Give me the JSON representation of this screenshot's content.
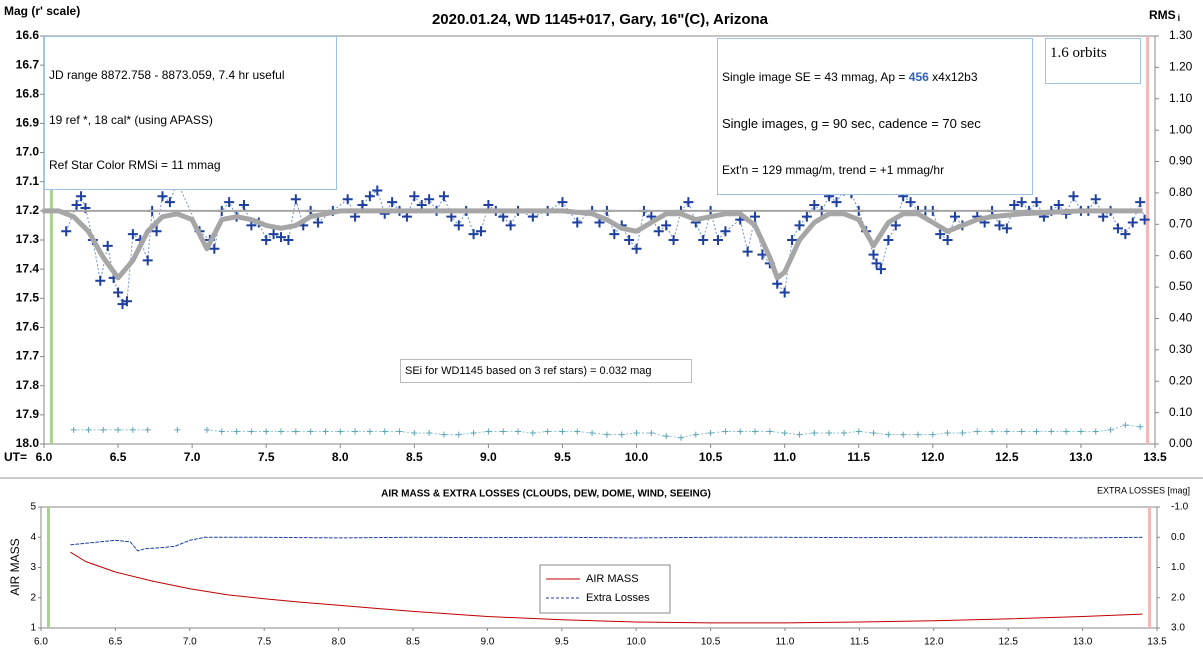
{
  "chart_data": [
    {
      "type": "scatter",
      "title": "2020.01.24, WD 1145+017, Gary, 16\"(C), Arizona",
      "ylabel": "Mag (r' scale)",
      "y2label": {
        "text": "RMS",
        "sub": "i"
      },
      "xlabel": "UT=",
      "xlim": [
        6.0,
        13.5
      ],
      "xticks": [
        {
          "value": 6,
          "label": "6.0"
        },
        6.5,
        {
          "value": 7,
          "label": "7.0"
        },
        7.5,
        {
          "value": 8,
          "label": "8.0"
        },
        8.5,
        {
          "value": 9,
          "label": "9.0"
        },
        9.5,
        {
          "value": 10,
          "label": "10.0"
        },
        10.5,
        {
          "value": 11,
          "label": "11.0"
        },
        11.5,
        {
          "value": 12,
          "label": "12.0"
        },
        12.5,
        {
          "value": 13,
          "label": "13.0"
        },
        13.5
      ],
      "ylim": [
        18.0,
        16.6
      ],
      "yticks": [
        16.6,
        16.7,
        16.8,
        16.9,
        {
          "value": 17,
          "label": "17.0"
        },
        17.1,
        17.2,
        17.3,
        17.4,
        17.5,
        17.6,
        17.7,
        17.8,
        17.9,
        {
          "value": 18,
          "label": "18.0"
        }
      ],
      "y2lim": [
        0,
        1.3
      ],
      "y2ticks": [
        {
          "value": 0,
          "label": "0.00"
        },
        {
          "value": 0.1,
          "label": "0.10"
        },
        {
          "value": 0.2,
          "label": "0.20"
        },
        {
          "value": 0.3,
          "label": "0.30"
        },
        {
          "value": 0.4,
          "label": "0.40"
        },
        {
          "value": 0.5,
          "label": "0.50"
        },
        {
          "value": 0.6,
          "label": "0.60"
        },
        {
          "value": 0.7,
          "label": "0.70"
        },
        {
          "value": 0.8,
          "label": "0.80"
        },
        {
          "value": 0.9,
          "label": "0.90"
        },
        {
          "value": 1.0,
          "label": "1.00"
        },
        {
          "value": 1.1,
          "label": "1.10"
        },
        {
          "value": 1.2,
          "label": "1.20"
        },
        {
          "value": 1.3,
          "label": "1.30"
        }
      ],
      "grid": false,
      "vlines": [
        {
          "x": 6.05,
          "color": "#a9d18e"
        },
        {
          "x": 13.45,
          "color": "#f4b6b6"
        }
      ],
      "series": [
        {
          "kind": "plus",
          "color": "#1f3f9f",
          "line_color": "#6f93cf",
          "x": [
            6.15,
            6.22,
            6.25,
            6.28,
            6.33,
            6.38,
            6.43,
            6.47,
            6.5,
            6.53,
            6.56,
            6.6,
            6.65,
            6.7,
            6.73,
            6.76,
            6.8,
            6.85,
            6.9,
            7.05,
            7.12,
            7.15,
            7.2,
            7.25,
            7.3,
            7.35,
            7.4,
            7.45,
            7.5,
            7.55,
            7.6,
            7.65,
            7.7,
            7.75,
            7.8,
            7.85,
            7.95,
            8.05,
            8.1,
            8.15,
            8.2,
            8.25,
            8.3,
            8.35,
            8.4,
            8.45,
            8.5,
            8.55,
            8.6,
            8.65,
            8.7,
            8.75,
            8.8,
            8.85,
            8.9,
            8.95,
            9.0,
            9.05,
            9.1,
            9.15,
            9.2,
            9.3,
            9.4,
            9.5,
            9.6,
            9.7,
            9.75,
            9.8,
            9.85,
            9.9,
            9.95,
            10.0,
            10.05,
            10.1,
            10.15,
            10.2,
            10.25,
            10.3,
            10.35,
            10.4,
            10.45,
            10.5,
            10.55,
            10.6,
            10.7,
            10.75,
            10.8,
            10.85,
            10.9,
            10.95,
            11.0,
            11.05,
            11.1,
            11.15,
            11.2,
            11.25,
            11.3,
            11.35,
            11.4,
            11.45,
            11.5,
            11.55,
            11.6,
            11.62,
            11.65,
            11.7,
            11.75,
            11.8,
            11.85,
            11.9,
            11.95,
            12.0,
            12.05,
            12.1,
            12.15,
            12.2,
            12.3,
            12.35,
            12.4,
            12.45,
            12.5,
            12.55,
            12.6,
            12.65,
            12.7,
            12.75,
            12.8,
            12.85,
            12.9,
            12.95,
            13.0,
            13.05,
            13.1,
            13.15,
            13.2,
            13.25,
            13.3,
            13.35,
            13.4,
            13.43
          ],
          "values": [
            17.27,
            17.18,
            17.15,
            17.19,
            17.3,
            17.44,
            17.32,
            17.43,
            17.48,
            17.52,
            17.51,
            17.28,
            17.3,
            17.37,
            17.2,
            17.27,
            17.15,
            17.17,
            17.1,
            17.27,
            17.3,
            17.33,
            17.2,
            17.17,
            17.22,
            17.18,
            17.25,
            17.24,
            17.3,
            17.28,
            17.29,
            17.3,
            17.16,
            17.25,
            17.2,
            17.24,
            17.2,
            17.16,
            17.22,
            17.18,
            17.15,
            17.13,
            17.21,
            17.17,
            17.2,
            17.22,
            17.15,
            17.18,
            17.16,
            17.2,
            17.15,
            17.22,
            17.25,
            17.2,
            17.28,
            17.27,
            17.18,
            17.2,
            17.22,
            17.25,
            17.2,
            17.22,
            17.2,
            17.17,
            17.24,
            17.2,
            17.24,
            17.2,
            17.28,
            17.25,
            17.3,
            17.33,
            17.2,
            17.22,
            17.27,
            17.25,
            17.3,
            17.2,
            17.17,
            17.24,
            17.3,
            17.2,
            17.3,
            17.27,
            17.23,
            17.34,
            17.22,
            17.35,
            17.38,
            17.45,
            17.48,
            17.3,
            17.25,
            17.22,
            17.18,
            17.2,
            17.15,
            17.17,
            17.13,
            17.14,
            17.2,
            17.27,
            17.35,
            17.38,
            17.4,
            17.3,
            17.25,
            17.15,
            17.17,
            17.2,
            17.2,
            17.2,
            17.28,
            17.3,
            17.22,
            17.25,
            17.22,
            17.24,
            17.2,
            17.25,
            17.26,
            17.18,
            17.17,
            17.2,
            17.17,
            17.22,
            17.2,
            17.18,
            17.21,
            17.15,
            17.2,
            17.2,
            17.16,
            17.22,
            17.2,
            17.26,
            17.28,
            17.24,
            17.17,
            17.23
          ]
        },
        {
          "kind": "line",
          "color": "#a6a6a6",
          "width": 5,
          "x": [
            6.0,
            6.1,
            6.2,
            6.3,
            6.4,
            6.5,
            6.6,
            6.7,
            6.8,
            6.9,
            7.0,
            7.05,
            7.1,
            7.15,
            7.2,
            7.3,
            7.4,
            7.5,
            7.6,
            7.7,
            7.8,
            7.9,
            8.0,
            8.5,
            9.0,
            9.5,
            9.7,
            9.8,
            9.9,
            10.0,
            10.1,
            10.2,
            10.3,
            10.4,
            10.5,
            10.6,
            10.7,
            10.8,
            10.9,
            10.95,
            11.0,
            11.1,
            11.2,
            11.3,
            11.4,
            11.5,
            11.6,
            11.7,
            11.8,
            11.9,
            12.0,
            12.1,
            12.2,
            12.3,
            12.4,
            12.6,
            13.0,
            13.4
          ],
          "values": [
            17.2,
            17.2,
            17.22,
            17.27,
            17.36,
            17.43,
            17.37,
            17.27,
            17.22,
            17.21,
            17.23,
            17.28,
            17.33,
            17.28,
            17.23,
            17.22,
            17.23,
            17.25,
            17.26,
            17.25,
            17.22,
            17.21,
            17.2,
            17.2,
            17.2,
            17.2,
            17.21,
            17.23,
            17.26,
            17.27,
            17.24,
            17.21,
            17.21,
            17.23,
            17.22,
            17.21,
            17.21,
            17.25,
            17.36,
            17.43,
            17.41,
            17.3,
            17.24,
            17.21,
            17.21,
            17.23,
            17.32,
            17.24,
            17.21,
            17.21,
            17.24,
            17.27,
            17.25,
            17.23,
            17.22,
            17.21,
            17.2,
            17.2
          ]
        },
        {
          "kind": "line",
          "color": "#a6a6a6",
          "width": 2,
          "x": [
            6.0,
            13.4
          ],
          "values": [
            17.2,
            17.2
          ]
        },
        {
          "kind": "plus",
          "axis": "y2",
          "color": "#5fa7b5",
          "line_color": "#8cc4cf",
          "size": 3,
          "x": [
            6.2,
            6.3,
            6.4,
            6.5,
            6.6,
            6.7,
            6.8,
            6.9,
            7.0,
            7.1,
            7.2,
            7.3,
            7.4,
            7.5,
            7.6,
            7.7,
            7.8,
            7.9,
            8.0,
            8.1,
            8.2,
            8.3,
            8.4,
            8.5,
            8.6,
            8.7,
            8.8,
            8.9,
            9.0,
            9.1,
            9.2,
            9.3,
            9.4,
            9.5,
            9.6,
            9.7,
            9.8,
            9.9,
            10.0,
            10.1,
            10.2,
            10.3,
            10.4,
            10.5,
            10.6,
            10.7,
            10.8,
            10.9,
            11.0,
            11.1,
            11.2,
            11.3,
            11.4,
            11.5,
            11.6,
            11.7,
            11.8,
            11.9,
            12.0,
            12.1,
            12.2,
            12.3,
            12.4,
            12.5,
            12.6,
            12.7,
            12.8,
            12.9,
            13.0,
            13.1,
            13.2,
            13.3,
            13.4
          ],
          "values": [
            0.045,
            0.045,
            0.045,
            0.045,
            0.045,
            0.045,
            null,
            0.045,
            null,
            0.045,
            0.04,
            0.04,
            0.04,
            0.04,
            0.04,
            0.04,
            0.04,
            0.04,
            0.04,
            0.04,
            0.04,
            0.04,
            0.04,
            0.035,
            0.035,
            0.03,
            0.03,
            0.035,
            0.04,
            0.04,
            0.04,
            0.035,
            0.04,
            0.04,
            0.04,
            0.035,
            0.03,
            0.03,
            0.035,
            0.035,
            0.025,
            0.02,
            0.03,
            0.035,
            0.04,
            0.04,
            0.04,
            0.04,
            0.035,
            0.03,
            0.035,
            0.035,
            0.035,
            0.04,
            0.035,
            0.03,
            0.03,
            0.03,
            0.03,
            0.035,
            0.035,
            0.04,
            0.04,
            0.04,
            0.04,
            0.04,
            0.04,
            0.04,
            0.04,
            0.04,
            0.045,
            0.06,
            0.055
          ]
        }
      ],
      "annotations": {
        "info": [
          "JD range 8872.758 - 8873.059, 7.4 hr useful",
          "19 ref *, 18 cal* (using APASS)",
          "Ref Star Color RMSi = 11 mmag"
        ],
        "image": [
          [
            "Single image SE = 43 mmag, Ap = ",
            "456",
            " x4x12b3"
          ],
          "Single images, g = 90 sec, cadence = 70 sec",
          "Ext'n = 129 mmag/m, trend = +1 mmag/hr"
        ],
        "orbits": "1.6 orbits",
        "sei": "SEi for WD1145 based on 3 ref stars) = 0.032 mag"
      }
    },
    {
      "type": "line",
      "title": "AIR MASS & EXTRA LOSSES (CLOUDS, DEW, DOME, WIND, SEEING)",
      "ylabel": "AIR MASS",
      "y2label": "EXTRA LOSSES [mag]",
      "xlim": [
        6.0,
        13.5
      ],
      "xticks": [
        {
          "value": 6,
          "label": "6.0"
        },
        6.5,
        {
          "value": 7,
          "label": "7.0"
        },
        7.5,
        {
          "value": 8,
          "label": "8.0"
        },
        8.5,
        {
          "value": 9,
          "label": "9.0"
        },
        9.5,
        {
          "value": 10,
          "label": "10.0"
        },
        10.5,
        {
          "value": 11,
          "label": "11.0"
        },
        11.5,
        {
          "value": 12,
          "label": "12.0"
        },
        12.5,
        {
          "value": 13,
          "label": "13.0"
        },
        13.5
      ],
      "ylim": [
        1,
        5
      ],
      "yticks": [
        1,
        2,
        3,
        4,
        5
      ],
      "y2lim": [
        3.0,
        -1.0
      ],
      "y2ticks": [
        {
          "value": -1,
          "label": "-1.0"
        },
        {
          "value": 0,
          "label": "0.0"
        },
        {
          "value": 1,
          "label": "1.0"
        },
        {
          "value": 2,
          "label": "2.0"
        },
        {
          "value": 3,
          "label": "3.0"
        }
      ],
      "grid": false,
      "legend": "center",
      "vlines": [
        {
          "x": 6.05,
          "color": "#a9d18e"
        },
        {
          "x": 13.45,
          "color": "#f4b6b6"
        }
      ],
      "series": [
        {
          "name": "AIR MASS",
          "kind": "line",
          "color": "#c00000",
          "width": 1,
          "x": [
            6.2,
            6.3,
            6.5,
            6.75,
            7.0,
            7.25,
            7.5,
            7.75,
            8.0,
            8.5,
            9.0,
            9.5,
            10.0,
            10.5,
            11.0,
            11.5,
            12.0,
            12.5,
            13.0,
            13.4
          ],
          "values": [
            3.5,
            3.2,
            2.85,
            2.55,
            2.3,
            2.1,
            1.97,
            1.85,
            1.75,
            1.55,
            1.38,
            1.27,
            1.2,
            1.17,
            1.17,
            1.2,
            1.24,
            1.3,
            1.38,
            1.46
          ]
        },
        {
          "name": "Extra Losses",
          "kind": "dashed",
          "axis": "y2",
          "color": "#1f3f9f",
          "width": 1,
          "x": [
            6.2,
            6.3,
            6.4,
            6.5,
            6.6,
            6.65,
            6.7,
            6.8,
            6.9,
            7.0,
            7.1,
            7.5,
            8.0,
            8.5,
            9.0,
            9.5,
            10.0,
            10.5,
            11.0,
            11.5,
            12.0,
            12.5,
            13.0,
            13.4
          ],
          "values": [
            0.25,
            0.2,
            0.15,
            0.1,
            0.15,
            0.45,
            0.38,
            0.35,
            0.3,
            0.1,
            0.0,
            0.0,
            0.02,
            0.0,
            0.01,
            0.0,
            0.02,
            0.0,
            0.0,
            0.01,
            0.0,
            0.0,
            0.02,
            0.0
          ]
        }
      ]
    }
  ]
}
